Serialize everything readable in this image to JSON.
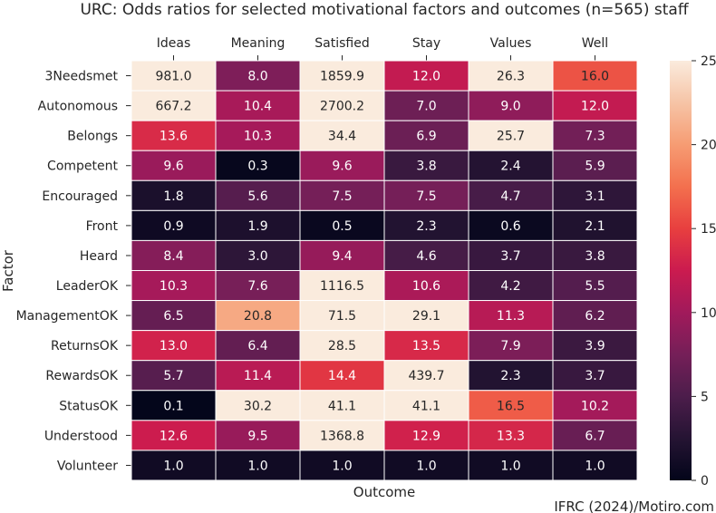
{
  "chart_data": {
    "type": "heatmap",
    "title": "URC: Odds ratios for selected motivational factors and outcomes (n=565) staff",
    "xlabel": "Outcome",
    "ylabel": "Factor",
    "columns": [
      "Ideas",
      "Meaning",
      "Satisfied",
      "Stay",
      "Values",
      "Well"
    ],
    "rows": [
      "3Needsmet",
      "Autonomous",
      "Belongs",
      "Competent",
      "Encouraged",
      "Front",
      "Heard",
      "LeaderOK",
      "ManagementOK",
      "ReturnsOK",
      "RewardsOK",
      "StatusOK",
      "Understood",
      "Volunteer"
    ],
    "values": [
      [
        981.0,
        8.0,
        1859.9,
        12.0,
        26.3,
        16.0
      ],
      [
        667.2,
        10.4,
        2700.2,
        7.0,
        9.0,
        12.0
      ],
      [
        13.6,
        10.3,
        34.4,
        6.9,
        25.7,
        7.3
      ],
      [
        9.6,
        0.3,
        9.6,
        3.8,
        2.4,
        5.9
      ],
      [
        1.8,
        5.6,
        7.5,
        7.5,
        4.7,
        3.1
      ],
      [
        0.9,
        1.9,
        0.5,
        2.3,
        0.6,
        2.1
      ],
      [
        8.4,
        3.0,
        9.4,
        4.6,
        3.7,
        3.8
      ],
      [
        10.3,
        7.6,
        1116.5,
        10.6,
        4.2,
        5.5
      ],
      [
        6.5,
        20.8,
        71.5,
        29.1,
        11.3,
        6.2
      ],
      [
        13.0,
        6.4,
        28.5,
        13.5,
        7.9,
        3.9
      ],
      [
        5.7,
        11.4,
        14.4,
        439.7,
        2.3,
        3.7
      ],
      [
        0.1,
        30.2,
        41.1,
        41.1,
        16.5,
        10.2
      ],
      [
        12.6,
        9.5,
        1368.8,
        12.9,
        13.3,
        6.7
      ],
      [
        1.0,
        1.0,
        1.0,
        1.0,
        1.0,
        1.0
      ]
    ],
    "color_range": [
      0,
      25
    ],
    "colorbar_ticks": [
      0,
      5,
      10,
      15,
      20,
      25
    ],
    "colormap": "rocket",
    "x_axis_position": "top",
    "legend": "colorbar-right"
  },
  "source": "IFRC (2024)/Motiro.com"
}
